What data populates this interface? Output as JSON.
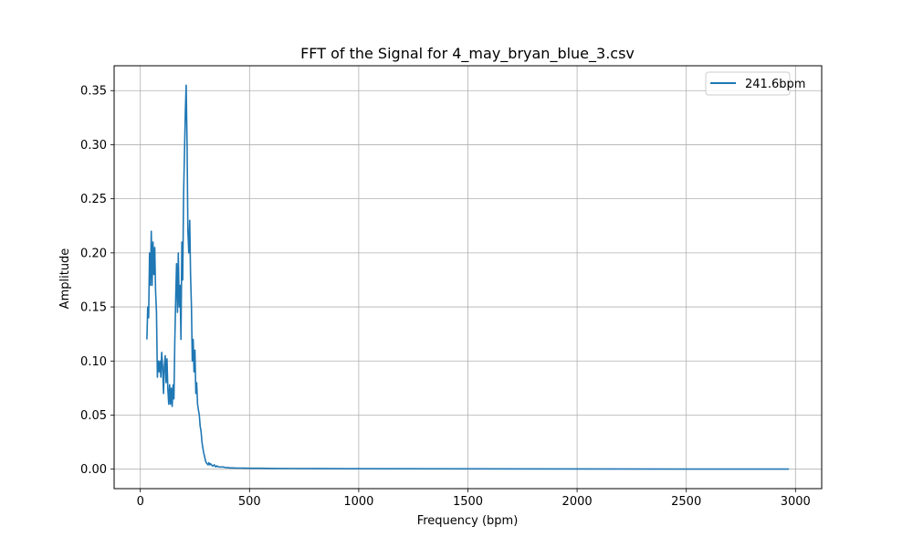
{
  "chart_data": {
    "type": "line",
    "title": "FFT of the Signal for 4_may_bryan_blue_3.csv",
    "xlabel": "Frequency (bpm)",
    "ylabel": "Amplitude",
    "xlim": [
      -120,
      3120
    ],
    "ylim": [
      -0.018,
      0.373
    ],
    "xticks": [
      0,
      500,
      1000,
      1500,
      2000,
      2500,
      3000
    ],
    "xtick_labels": [
      "0",
      "500",
      "1000",
      "1500",
      "2000",
      "2500",
      "3000"
    ],
    "yticks": [
      0.0,
      0.05,
      0.1,
      0.15,
      0.2,
      0.25,
      0.3,
      0.35
    ],
    "ytick_labels": [
      "0.00",
      "0.05",
      "0.10",
      "0.15",
      "0.20",
      "0.25",
      "0.30",
      "0.35"
    ],
    "grid": true,
    "legend_position": "top-right",
    "series": [
      {
        "name": "241.6bpm",
        "color": "#1f77b4",
        "x": [
          30,
          34,
          38,
          42,
          46,
          50,
          54,
          58,
          62,
          66,
          70,
          74,
          78,
          82,
          86,
          90,
          94,
          98,
          102,
          106,
          110,
          114,
          118,
          122,
          126,
          130,
          134,
          138,
          142,
          146,
          150,
          154,
          158,
          162,
          166,
          170,
          174,
          178,
          182,
          186,
          190,
          194,
          198,
          202,
          206,
          210,
          214,
          218,
          222,
          226,
          230,
          234,
          238,
          242,
          246,
          250,
          254,
          258,
          262,
          266,
          270,
          274,
          278,
          282,
          286,
          290,
          294,
          298,
          302,
          306,
          310,
          314,
          318,
          322,
          326,
          330,
          334,
          338,
          342,
          346,
          350,
          360,
          370,
          380,
          390,
          400,
          410,
          420,
          430,
          440,
          450,
          460,
          470,
          480,
          500,
          550,
          600,
          700,
          800,
          1000,
          1500,
          2000,
          2500,
          2970
        ],
        "y": [
          0.12,
          0.15,
          0.14,
          0.2,
          0.17,
          0.22,
          0.17,
          0.21,
          0.18,
          0.205,
          0.165,
          0.145,
          0.085,
          0.1,
          0.09,
          0.1,
          0.085,
          0.108,
          0.095,
          0.07,
          0.095,
          0.105,
          0.08,
          0.102,
          0.075,
          0.06,
          0.078,
          0.06,
          0.075,
          0.058,
          0.078,
          0.065,
          0.12,
          0.16,
          0.19,
          0.145,
          0.2,
          0.15,
          0.17,
          0.12,
          0.21,
          0.175,
          0.255,
          0.29,
          0.33,
          0.355,
          0.3,
          0.22,
          0.2,
          0.23,
          0.18,
          0.15,
          0.1,
          0.12,
          0.09,
          0.11,
          0.07,
          0.08,
          0.06,
          0.055,
          0.05,
          0.04,
          0.035,
          0.025,
          0.02,
          0.015,
          0.012,
          0.008,
          0.006,
          0.005,
          0.004,
          0.006,
          0.004,
          0.005,
          0.004,
          0.003,
          0.003,
          0.004,
          0.003,
          0.002,
          0.003,
          0.002,
          0.002,
          0.002,
          0.0015,
          0.0015,
          0.0012,
          0.0012,
          0.0011,
          0.001,
          0.001,
          0.001,
          0.0009,
          0.0009,
          0.0008,
          0.0008,
          0.0007,
          0.0006,
          0.0005,
          0.0004,
          0.0003,
          0.0002,
          0.0001,
          0.0001
        ]
      }
    ]
  }
}
